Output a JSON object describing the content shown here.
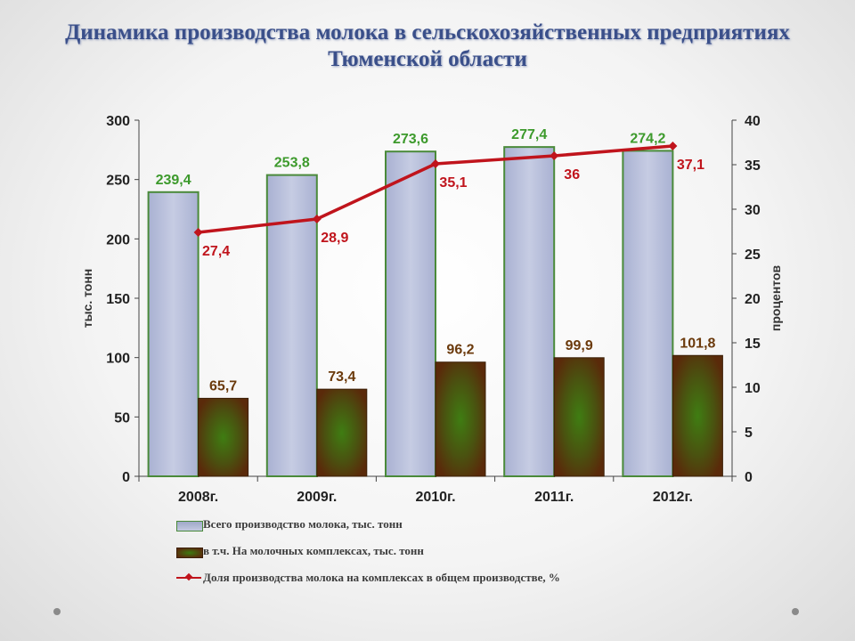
{
  "title_lines": [
    "Динамика производства молока в сельскохозяйственных предприятиях",
    "Тюменской области"
  ],
  "chart_data": {
    "type": "bar",
    "categories": [
      "2008г.",
      "2009г.",
      "2010г.",
      "2011г.",
      "2012г."
    ],
    "series": [
      {
        "name": "Всего производство молока, тыс. тонн",
        "type": "bar",
        "axis": "left",
        "values": [
          239.4,
          253.8,
          273.6,
          277.4,
          274.2
        ],
        "labels": [
          "239,4",
          "253,8",
          "273,6",
          "277,4",
          "274,2"
        ]
      },
      {
        "name": "в т.ч. На молочных комплексах, тыс. тонн",
        "type": "bar",
        "axis": "left",
        "values": [
          65.7,
          73.4,
          96.2,
          99.9,
          101.8
        ],
        "labels": [
          "65,7",
          "73,4",
          "96,2",
          "99,9",
          "101,8"
        ]
      },
      {
        "name": "Доля производства молока на комплексах в общем производстве, %",
        "type": "line",
        "axis": "right",
        "values": [
          27.4,
          28.9,
          35.1,
          36,
          37.1
        ],
        "labels": [
          "27,4",
          "28,9",
          "35,1",
          "36",
          "37,1"
        ]
      }
    ],
    "ylabel": "тыс. тонн",
    "ylabel_right": "процентов",
    "ylim": [
      0,
      300
    ],
    "yticks": [
      "0",
      "50",
      "100",
      "150",
      "200",
      "250",
      "300"
    ],
    "ylim_right": [
      0,
      40
    ],
    "yticks_right": [
      "0",
      "5",
      "10",
      "15",
      "20",
      "25",
      "30",
      "35",
      "40"
    ],
    "grid": false,
    "legend": "bottom",
    "colors": {
      "total_bar": "#b8bfdc",
      "total_border": "#4a8a3a",
      "complex_bar": "#5a2e0c",
      "complex_center": "#3c7a10",
      "line": "#c0141c",
      "total_label": "#3d9a2c",
      "complex_label": "#6b3a0c",
      "line_label": "#c0141c"
    }
  }
}
